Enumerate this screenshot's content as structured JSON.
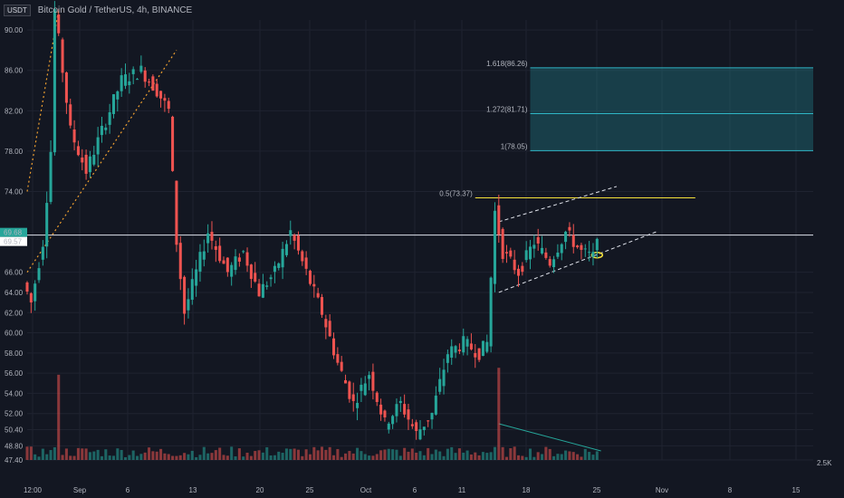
{
  "header": {
    "quote_badge": "USDT",
    "title": "Bitcoin Gold / TetherUS, 4h, BINANCE"
  },
  "colors": {
    "up": "#26a69a",
    "down": "#ef5350",
    "bg": "#131722",
    "grid": "#1f2330",
    "fib": "#f5e23a",
    "zone": "#1e6f7a"
  },
  "chart_data": {
    "type": "candlestick",
    "title": "Bitcoin Gold / TetherUS, 4h, BINANCE",
    "y_ticks": [
      "90.00",
      "86.00",
      "82.00",
      "78.00",
      "74.00",
      "66.00",
      "64.00",
      "62.00",
      "60.00",
      "58.00",
      "56.00",
      "54.00",
      "52.00",
      "50.40",
      "48.80",
      "47.40"
    ],
    "y_tick_values": [
      90,
      86,
      82,
      78,
      74,
      66,
      64,
      62,
      60,
      58,
      56,
      54,
      52,
      50.4,
      48.8,
      47.4
    ],
    "x_ticks": [
      "12:00",
      "Sep",
      "6",
      "13",
      "20",
      "25",
      "Oct",
      "6",
      "11",
      "18",
      "25",
      "Nov",
      "8",
      "15"
    ],
    "price_labels": {
      "last": "69.68",
      "prev": "69.57"
    },
    "volume_label": "2.5K",
    "path": [
      [
        0,
        65
      ],
      [
        2,
        63
      ],
      [
        5,
        69
      ],
      [
        7,
        78
      ],
      [
        8,
        92
      ],
      [
        10,
        86
      ],
      [
        12,
        80
      ],
      [
        16,
        76
      ],
      [
        20,
        80
      ],
      [
        25,
        85
      ],
      [
        30,
        86
      ],
      [
        34,
        84
      ],
      [
        37,
        82
      ],
      [
        39,
        69
      ],
      [
        41,
        62
      ],
      [
        44,
        66
      ],
      [
        47,
        70
      ],
      [
        52,
        66
      ],
      [
        56,
        68
      ],
      [
        60,
        64
      ],
      [
        64,
        66
      ],
      [
        68,
        70
      ],
      [
        72,
        66
      ],
      [
        76,
        62
      ],
      [
        80,
        57
      ],
      [
        84,
        53
      ],
      [
        88,
        56
      ],
      [
        92,
        51
      ],
      [
        96,
        53
      ],
      [
        100,
        50
      ],
      [
        104,
        52
      ],
      [
        108,
        58
      ],
      [
        112,
        59
      ],
      [
        116,
        58
      ],
      [
        118,
        59
      ],
      [
        120,
        72
      ],
      [
        122,
        68
      ],
      [
        126,
        66
      ],
      [
        130,
        69
      ],
      [
        134,
        67
      ],
      [
        138,
        70
      ],
      [
        142,
        68
      ],
      [
        145,
        67.5
      ],
      [
        146,
        70
      ]
    ],
    "fibonacci": [
      {
        "label": "1.618(86.26)",
        "value": 86.26
      },
      {
        "label": "1.272(81.71)",
        "value": 81.71
      },
      {
        "label": "1(78.05)",
        "value": 78.05
      },
      {
        "label": "0.5(73.37)",
        "value": 73.37
      }
    ],
    "horizontal_line": 69.68,
    "ylim": [
      47.4,
      91
    ],
    "xlim": [
      0,
      200
    ]
  }
}
